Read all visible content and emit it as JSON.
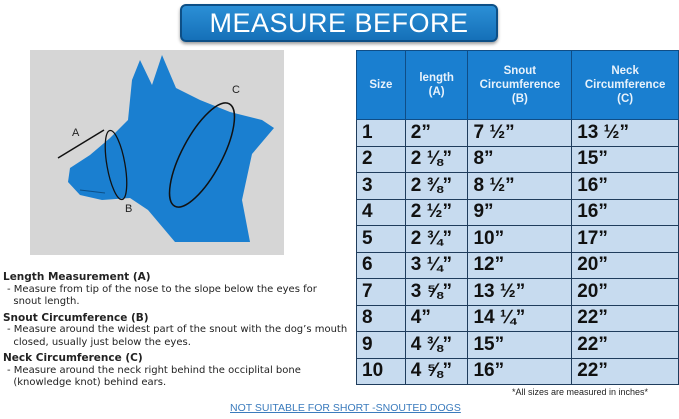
{
  "title": "MEASURE BEFORE BUYING",
  "diagram_labels": {
    "a": "A",
    "b": "B",
    "c": "C"
  },
  "table": {
    "headers": [
      [
        "Size"
      ],
      [
        "length",
        "(A)"
      ],
      [
        "Snout",
        "Circumference",
        "(B)"
      ],
      [
        "Neck",
        "Circumference",
        "(C)"
      ]
    ],
    "rows": [
      [
        "1",
        "2”",
        "7 ½”",
        "13 ½”"
      ],
      [
        "2",
        "2 ⅛”",
        "8”",
        "15”"
      ],
      [
        "3",
        "2 ⅜”",
        "8 ½”",
        "16”"
      ],
      [
        "4",
        "2 ½”",
        "9”",
        "16”"
      ],
      [
        "5",
        "2 ¾”",
        "10”",
        "17”"
      ],
      [
        "6",
        "3 ¼”",
        "12”",
        "20”"
      ],
      [
        "7",
        "3 ⅝”",
        "13 ½”",
        "20”"
      ],
      [
        "8",
        "4”",
        "14 ¼”",
        "22”"
      ],
      [
        "9",
        "4 ⅜”",
        "15”",
        "22”"
      ],
      [
        "10",
        "4 ⅝”",
        "16”",
        "22”"
      ]
    ]
  },
  "notes": [
    {
      "heading": "Length Measurement (A)",
      "lines": [
        "- Measure from tip of the nose to the slope below the eyes for",
        "  snout length."
      ]
    },
    {
      "heading": "Snout Circumference (B)",
      "lines": [
        "- Measure around the widest part of the snout with the dog’s mouth",
        "  closed, usually just below the eyes."
      ]
    },
    {
      "heading": "Neck Circumference (C)",
      "lines": [
        "- Measure around the neck right behind the occiplital bone",
        "  (knowledge knot) behind ears."
      ]
    }
  ],
  "all_sizes_note": "*All sizes are measured in inches*",
  "footer_link": "NOT SUITABLE FOR SHORT -SNOUTED DOGS",
  "colors": {
    "banner": "#1a7fd0",
    "table_header": "#1a7fd0",
    "table_cell": "#c7dbef",
    "dog": "#1a7fd0"
  }
}
